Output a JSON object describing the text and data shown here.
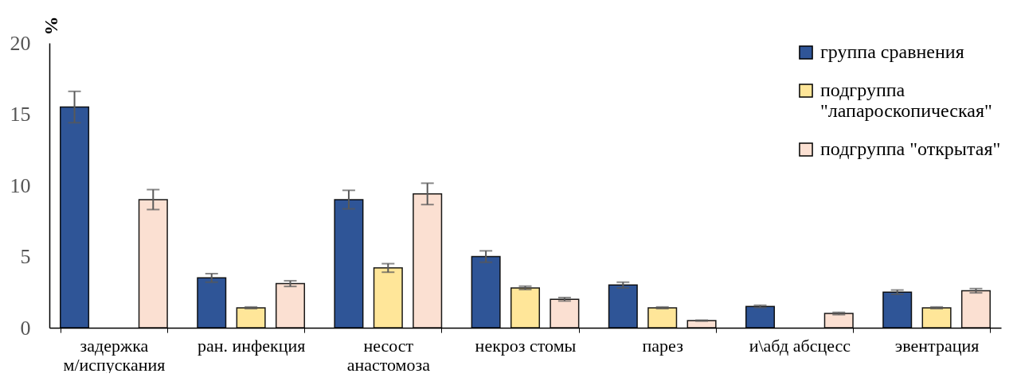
{
  "chart_data": {
    "type": "bar",
    "ylabel": "%",
    "categories": [
      "задержка\nм/испускания",
      "ран. инфекция",
      "несост\nанастомоза",
      "некроз стомы",
      "парез",
      "и\\абд абсцесс",
      "эвентрация"
    ],
    "series": [
      {
        "name": "группа сравнения",
        "color": "#2f5597",
        "values": [
          15.5,
          3.5,
          9.0,
          5.0,
          3.0,
          1.5,
          2.5
        ],
        "errors": [
          1.1,
          0.3,
          0.65,
          0.4,
          0.2,
          0.08,
          0.15
        ]
      },
      {
        "name": "подгруппа\n\"лапароскопическая\"",
        "color": "#ffe699",
        "values": [
          0,
          1.4,
          4.2,
          2.8,
          1.4,
          0,
          1.4
        ],
        "errors": [
          null,
          0.06,
          0.3,
          0.12,
          0.06,
          null,
          0.06
        ]
      },
      {
        "name": "подгруппа \"открытая\"",
        "color": "#fbe0d2",
        "values": [
          9.0,
          3.1,
          9.4,
          2.0,
          0.5,
          1.0,
          2.6
        ],
        "errors": [
          0.7,
          0.2,
          0.75,
          0.12,
          0.03,
          0.08,
          0.15
        ]
      }
    ],
    "ylim": [
      0,
      20
    ],
    "yticks": [
      0,
      5,
      10,
      15,
      20
    ],
    "grid": false,
    "legend": "top right"
  }
}
